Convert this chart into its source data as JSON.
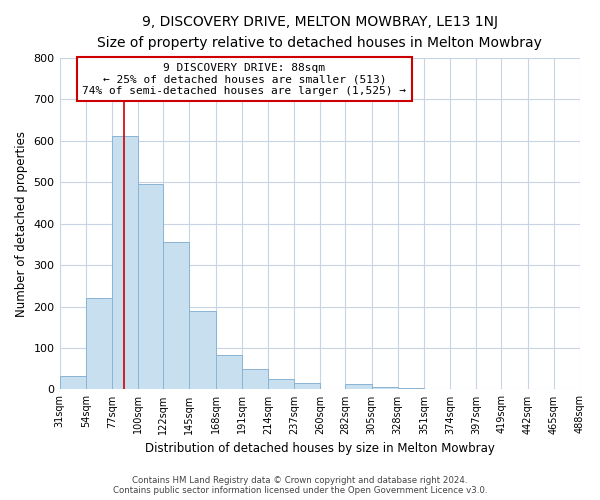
{
  "title": "9, DISCOVERY DRIVE, MELTON MOWBRAY, LE13 1NJ",
  "subtitle": "Size of property relative to detached houses in Melton Mowbray",
  "xlabel": "Distribution of detached houses by size in Melton Mowbray",
  "ylabel": "Number of detached properties",
  "bar_edges": [
    31,
    54,
    77,
    100,
    122,
    145,
    168,
    191,
    214,
    237,
    260,
    282,
    305,
    328,
    351,
    374,
    397,
    419,
    442,
    465,
    488
  ],
  "bar_heights": [
    33,
    220,
    610,
    495,
    355,
    190,
    83,
    50,
    25,
    15,
    0,
    12,
    5,
    3,
    0,
    0,
    0,
    0,
    0,
    0
  ],
  "bar_color": "#c8dff0",
  "bar_edge_color": "#8ab4d4",
  "property_line_x": 88,
  "property_line_color": "#cc0000",
  "annotation_title": "9 DISCOVERY DRIVE: 88sqm",
  "annotation_line1": "← 25% of detached houses are smaller (513)",
  "annotation_line2": "74% of semi-detached houses are larger (1,525) →",
  "annotation_box_color": "#ffffff",
  "annotation_box_edge": "#cc0000",
  "ylim": [
    0,
    800
  ],
  "yticks": [
    0,
    100,
    200,
    300,
    400,
    500,
    600,
    700,
    800
  ],
  "tick_labels": [
    "31sqm",
    "54sqm",
    "77sqm",
    "100sqm",
    "122sqm",
    "145sqm",
    "168sqm",
    "191sqm",
    "214sqm",
    "237sqm",
    "260sqm",
    "282sqm",
    "305sqm",
    "328sqm",
    "351sqm",
    "374sqm",
    "397sqm",
    "419sqm",
    "442sqm",
    "465sqm",
    "488sqm"
  ],
  "footer_line1": "Contains HM Land Registry data © Crown copyright and database right 2024.",
  "footer_line2": "Contains public sector information licensed under the Open Government Licence v3.0.",
  "background_color": "#ffffff",
  "grid_color": "#c8d4e4"
}
